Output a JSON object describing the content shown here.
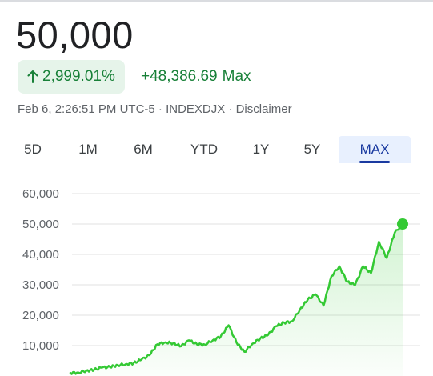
{
  "quote": {
    "price": "50,000",
    "change_percent": "2,999.01%",
    "change_absolute": "+48,386.69",
    "change_period": "Max",
    "meta": "Feb 6, 2:26:51 PM UTC-5 · INDEXDJX · Disclaimer"
  },
  "colors": {
    "positive": "#188038",
    "positive_bg": "#e6f4ea",
    "line": "#34c934",
    "active_tab": "#1a3aa0",
    "active_tab_bg": "#e8f0fe"
  },
  "tabs": [
    {
      "label": "5D",
      "active": false
    },
    {
      "label": "1M",
      "active": false
    },
    {
      "label": "6M",
      "active": false
    },
    {
      "label": "YTD",
      "active": false
    },
    {
      "label": "1Y",
      "active": false
    },
    {
      "label": "5Y",
      "active": false
    },
    {
      "label": "MAX",
      "active": true
    }
  ],
  "chart_data": {
    "type": "area",
    "y_tick_labels": [
      "60,000",
      "50,000",
      "40,000",
      "30,000",
      "20,000",
      "10,000"
    ],
    "y_ticks": [
      60000,
      50000,
      40000,
      30000,
      20000,
      10000
    ],
    "ylim": [
      0,
      60000
    ],
    "grid": true,
    "series": [
      {
        "values": [
          1000,
          1200,
          1600,
          2200,
          2600,
          3100,
          3500,
          3900,
          4300,
          5300,
          7000,
          10300,
          11200,
          10700,
          9800,
          11800,
          10300,
          10500,
          11600,
          13100,
          16600,
          11000,
          8000,
          10500,
          12500,
          13400,
          16500,
          17500,
          18000,
          21800,
          25000,
          27000,
          23000,
          33000,
          36000,
          31000,
          30000,
          36000,
          34000,
          44000,
          39000,
          47000,
          50000
        ]
      }
    ]
  }
}
